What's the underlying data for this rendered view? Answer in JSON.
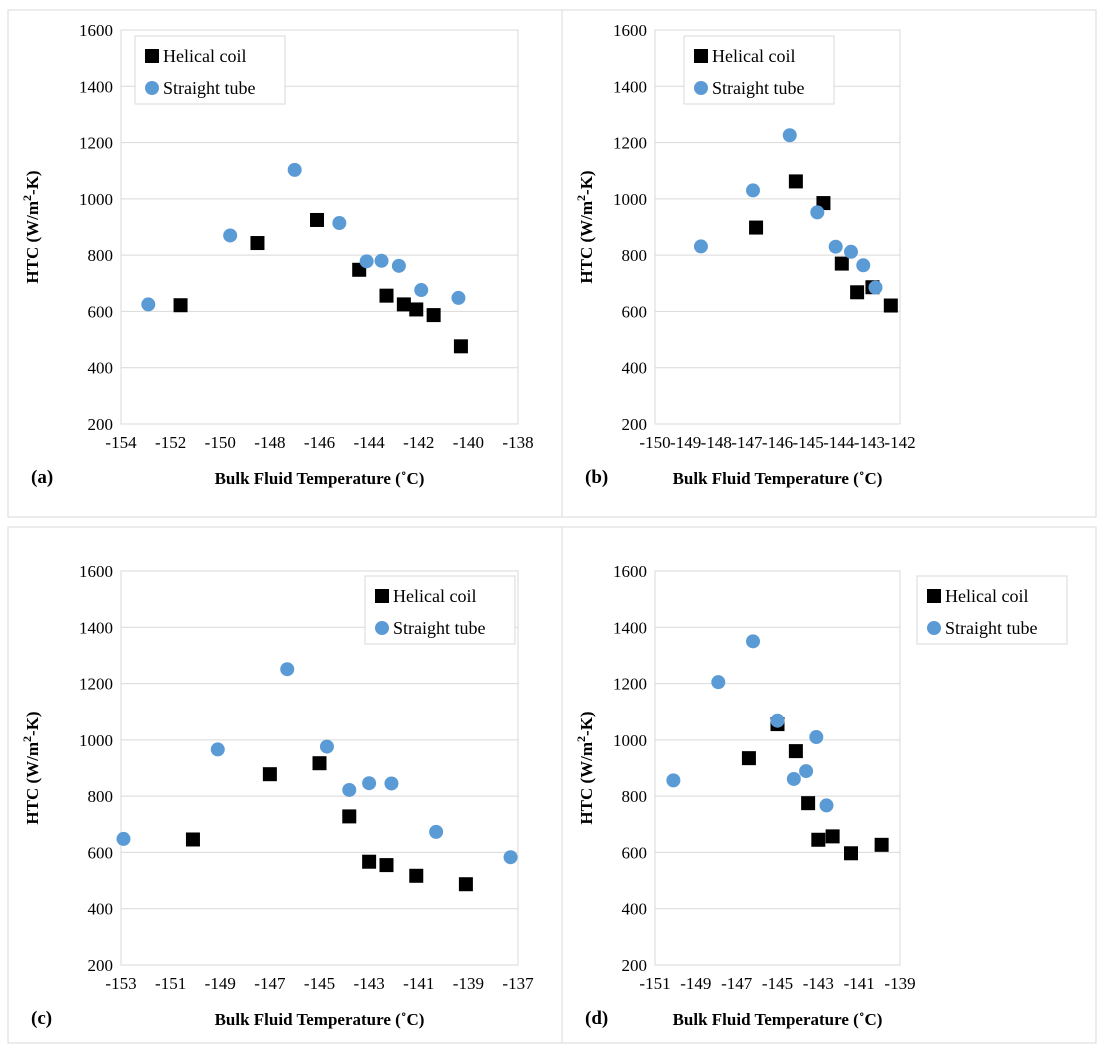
{
  "figure": {
    "colors": {
      "helical": "#000000",
      "straight": "#5b9bd5"
    }
  },
  "chart_data": [
    {
      "type": "scatter",
      "panel_label": "(a)",
      "xlabel": "Bulk Fluid Temperature (˚C)",
      "ylabel_main": "HTC (W/m",
      "ylabel_sup": "2",
      "ylabel_end": "-K)",
      "xlim": [
        -154,
        -138
      ],
      "ylim": [
        200,
        1600
      ],
      "xticks": [
        -154,
        -152,
        -150,
        -148,
        -146,
        -144,
        -142,
        -140,
        -138
      ],
      "yticks": [
        200,
        400,
        600,
        800,
        1000,
        1200,
        1400,
        1600
      ],
      "legend_position": "top-left",
      "grid": false,
      "series": [
        {
          "name": "Helical coil",
          "marker": "square",
          "x": [
            -151.6,
            -148.5,
            -146.1,
            -144.4,
            -143.3,
            -142.6,
            -142.1,
            -141.4,
            -140.3
          ],
          "y": [
            622,
            843,
            925,
            748,
            656,
            625,
            607,
            587,
            476
          ]
        },
        {
          "name": "Straight tube",
          "marker": "circle",
          "x": [
            -152.9,
            -149.6,
            -147.0,
            -145.2,
            -144.1,
            -143.5,
            -142.8,
            -141.9,
            -140.4
          ],
          "y": [
            625,
            870,
            1103,
            914,
            778,
            780,
            762,
            676,
            648
          ]
        }
      ]
    },
    {
      "type": "scatter",
      "panel_label": "(b)",
      "xlabel": "Bulk Fluid Temperature (˚C)",
      "ylabel_main": "HTC (W/m",
      "ylabel_sup": "2",
      "ylabel_end": "-K)",
      "xlim": [
        -150,
        -142
      ],
      "ylim": [
        200,
        1600
      ],
      "xticks": [
        -150,
        -149,
        -148,
        -147,
        -146,
        -145,
        -144,
        -143,
        -142
      ],
      "yticks": [
        200,
        400,
        600,
        800,
        1000,
        1200,
        1400,
        1600
      ],
      "legend_position": "top-left",
      "grid": false,
      "series": [
        {
          "name": "Helical coil",
          "marker": "square",
          "x": [
            -146.7,
            -145.4,
            -144.5,
            -143.9,
            -143.4,
            -142.9,
            -142.3
          ],
          "y": [
            898,
            1062,
            985,
            770,
            668,
            686,
            621
          ]
        },
        {
          "name": "Straight tube",
          "marker": "circle",
          "x": [
            -148.5,
            -146.8,
            -145.6,
            -144.7,
            -144.1,
            -143.6,
            -143.2,
            -142.8
          ],
          "y": [
            831,
            1030,
            1226,
            952,
            830,
            812,
            764,
            685
          ]
        }
      ]
    },
    {
      "type": "scatter",
      "panel_label": "(c)",
      "xlabel": "Bulk Fluid Temperature (˚C)",
      "ylabel_main": "HTC (W/m",
      "ylabel_sup": "2",
      "ylabel_end": "-K)",
      "xlim": [
        -153,
        -137
      ],
      "ylim": [
        200,
        1600
      ],
      "xticks": [
        -153,
        -151,
        -149,
        -147,
        -145,
        -143,
        -141,
        -139,
        -137
      ],
      "yticks": [
        200,
        400,
        600,
        800,
        1000,
        1200,
        1400,
        1600
      ],
      "legend_position": "top-right",
      "grid": false,
      "series": [
        {
          "name": "Helical coil",
          "marker": "square",
          "x": [
            -150.1,
            -147.0,
            -145.0,
            -143.8,
            -143.0,
            -142.3,
            -141.1,
            -139.1
          ],
          "y": [
            646,
            878,
            917,
            728,
            567,
            555,
            517,
            487
          ]
        },
        {
          "name": "Straight tube",
          "marker": "circle",
          "x": [
            -152.9,
            -149.1,
            -146.3,
            -144.7,
            -143.8,
            -143.0,
            -142.1,
            -140.3,
            -137.3
          ],
          "y": [
            648,
            966,
            1251,
            976,
            822,
            846,
            845,
            673,
            583
          ]
        }
      ]
    },
    {
      "type": "scatter",
      "panel_label": "(d)",
      "xlabel": "Bulk Fluid Temperature (˚C)",
      "ylabel_main": "HTC (W/m",
      "ylabel_sup": "2",
      "ylabel_end": "-K)",
      "xlim": [
        -151,
        -139
      ],
      "ylim": [
        200,
        1600
      ],
      "xticks": [
        -151,
        -149,
        -147,
        -145,
        -143,
        -141,
        -139
      ],
      "yticks": [
        200,
        400,
        600,
        800,
        1000,
        1200,
        1400,
        1600
      ],
      "legend_position": "top-right",
      "grid": false,
      "series": [
        {
          "name": "Helical coil",
          "marker": "square",
          "x": [
            -146.4,
            -145.0,
            -144.1,
            -143.5,
            -143.0,
            -142.3,
            -141.4,
            -139.9
          ],
          "y": [
            935,
            1056,
            960,
            775,
            645,
            657,
            597,
            627
          ]
        },
        {
          "name": "Straight tube",
          "marker": "circle",
          "x": [
            -150.1,
            -147.9,
            -146.2,
            -145.0,
            -144.2,
            -143.6,
            -143.1,
            -142.6
          ],
          "y": [
            856,
            1205,
            1350,
            1068,
            861,
            889,
            1010,
            767
          ]
        }
      ]
    }
  ]
}
